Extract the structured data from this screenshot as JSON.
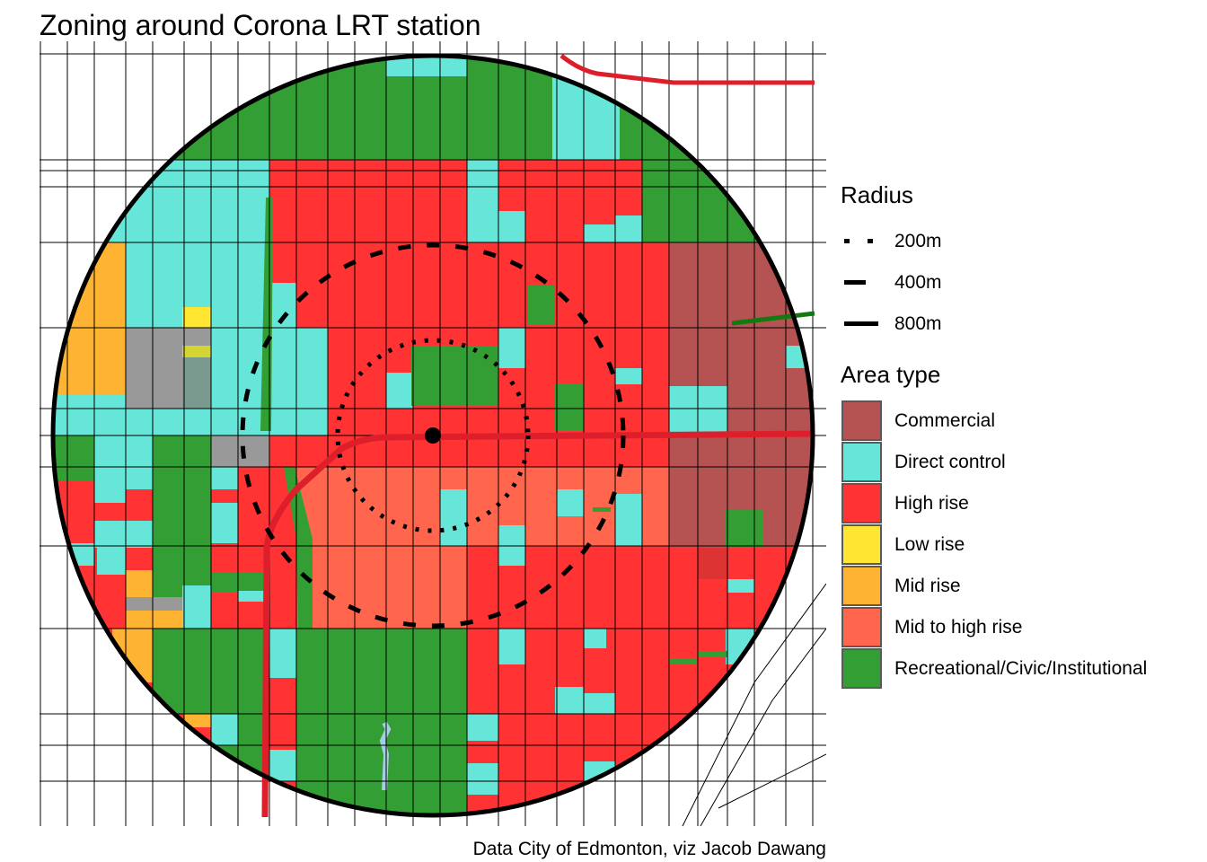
{
  "title": "Zoning around Corona LRT station",
  "caption": "Data City of Edmonton, viz Jacob Dawang",
  "legend": {
    "radius_title": "Radius",
    "radius_items": [
      {
        "label": "200m",
        "linetype": "dotted"
      },
      {
        "label": "400m",
        "linetype": "dashed"
      },
      {
        "label": "800m",
        "linetype": "solid"
      }
    ],
    "area_title": "Area type",
    "area_items": [
      {
        "label": "Commercial",
        "color": "#b55353"
      },
      {
        "label": "Direct control",
        "color": "#66e6d9"
      },
      {
        "label": "High rise",
        "color": "#ff3333"
      },
      {
        "label": "Low rise",
        "color": "#ffe633"
      },
      {
        "label": "Mid rise",
        "color": "#ffb333"
      },
      {
        "label": "Mid to high rise",
        "color": "#ff664d"
      },
      {
        "label": "Recreational/Civic/Institutional",
        "color": "#339e33"
      }
    ]
  },
  "other_colors": {
    "unzoned": "#999999",
    "lrt_line": "#dd1f2b",
    "water": "#a6cee3"
  }
}
